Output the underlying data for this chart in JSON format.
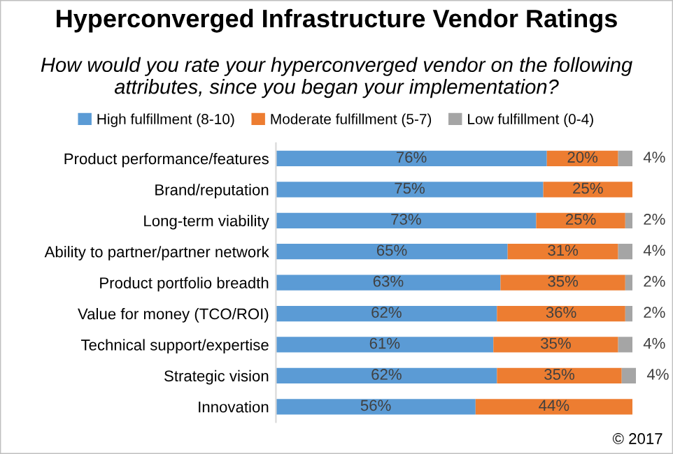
{
  "chart_data": {
    "type": "bar",
    "orientation": "horizontal",
    "stacked": true,
    "title": "Hyperconverged Infrastructure Vendor Ratings",
    "subtitle": "How would you rate your hyperconverged vendor on the following attributes, since you began your implementation?",
    "categories": [
      "Product performance/features",
      "Brand/reputation",
      "Long-term viability",
      "Ability to partner/partner network",
      "Product portfolio breadth",
      "Value for money (TCO/ROI)",
      "Technical support/expertise",
      "Strategic vision",
      "Innovation"
    ],
    "series": [
      {
        "name": "High fulfillment (8-10)",
        "color": "#5b9bd5",
        "values": [
          76,
          75,
          73,
          65,
          63,
          62,
          61,
          62,
          56
        ],
        "value_labels": [
          "76%",
          "75%",
          "73%",
          "65%",
          "63%",
          "62%",
          "61%",
          "62%",
          "56%"
        ]
      },
      {
        "name": "Moderate fulfillment (5-7)",
        "color": "#ed7d31",
        "values": [
          20,
          25,
          25,
          31,
          35,
          36,
          35,
          35,
          44
        ],
        "value_labels": [
          "20%",
          "25%",
          "25%",
          "31%",
          "35%",
          "36%",
          "35%",
          "35%",
          "44%"
        ]
      },
      {
        "name": "Low fulfillment (0-4)",
        "color": "#a5a5a5",
        "values": [
          4,
          null,
          2,
          4,
          2,
          2,
          4,
          4,
          null
        ],
        "value_labels": [
          "4%",
          null,
          "2%",
          "4%",
          "2%",
          "2%",
          "4%",
          "4%",
          null
        ]
      }
    ],
    "legend": "top",
    "annotations": [
      "© 2017"
    ]
  }
}
